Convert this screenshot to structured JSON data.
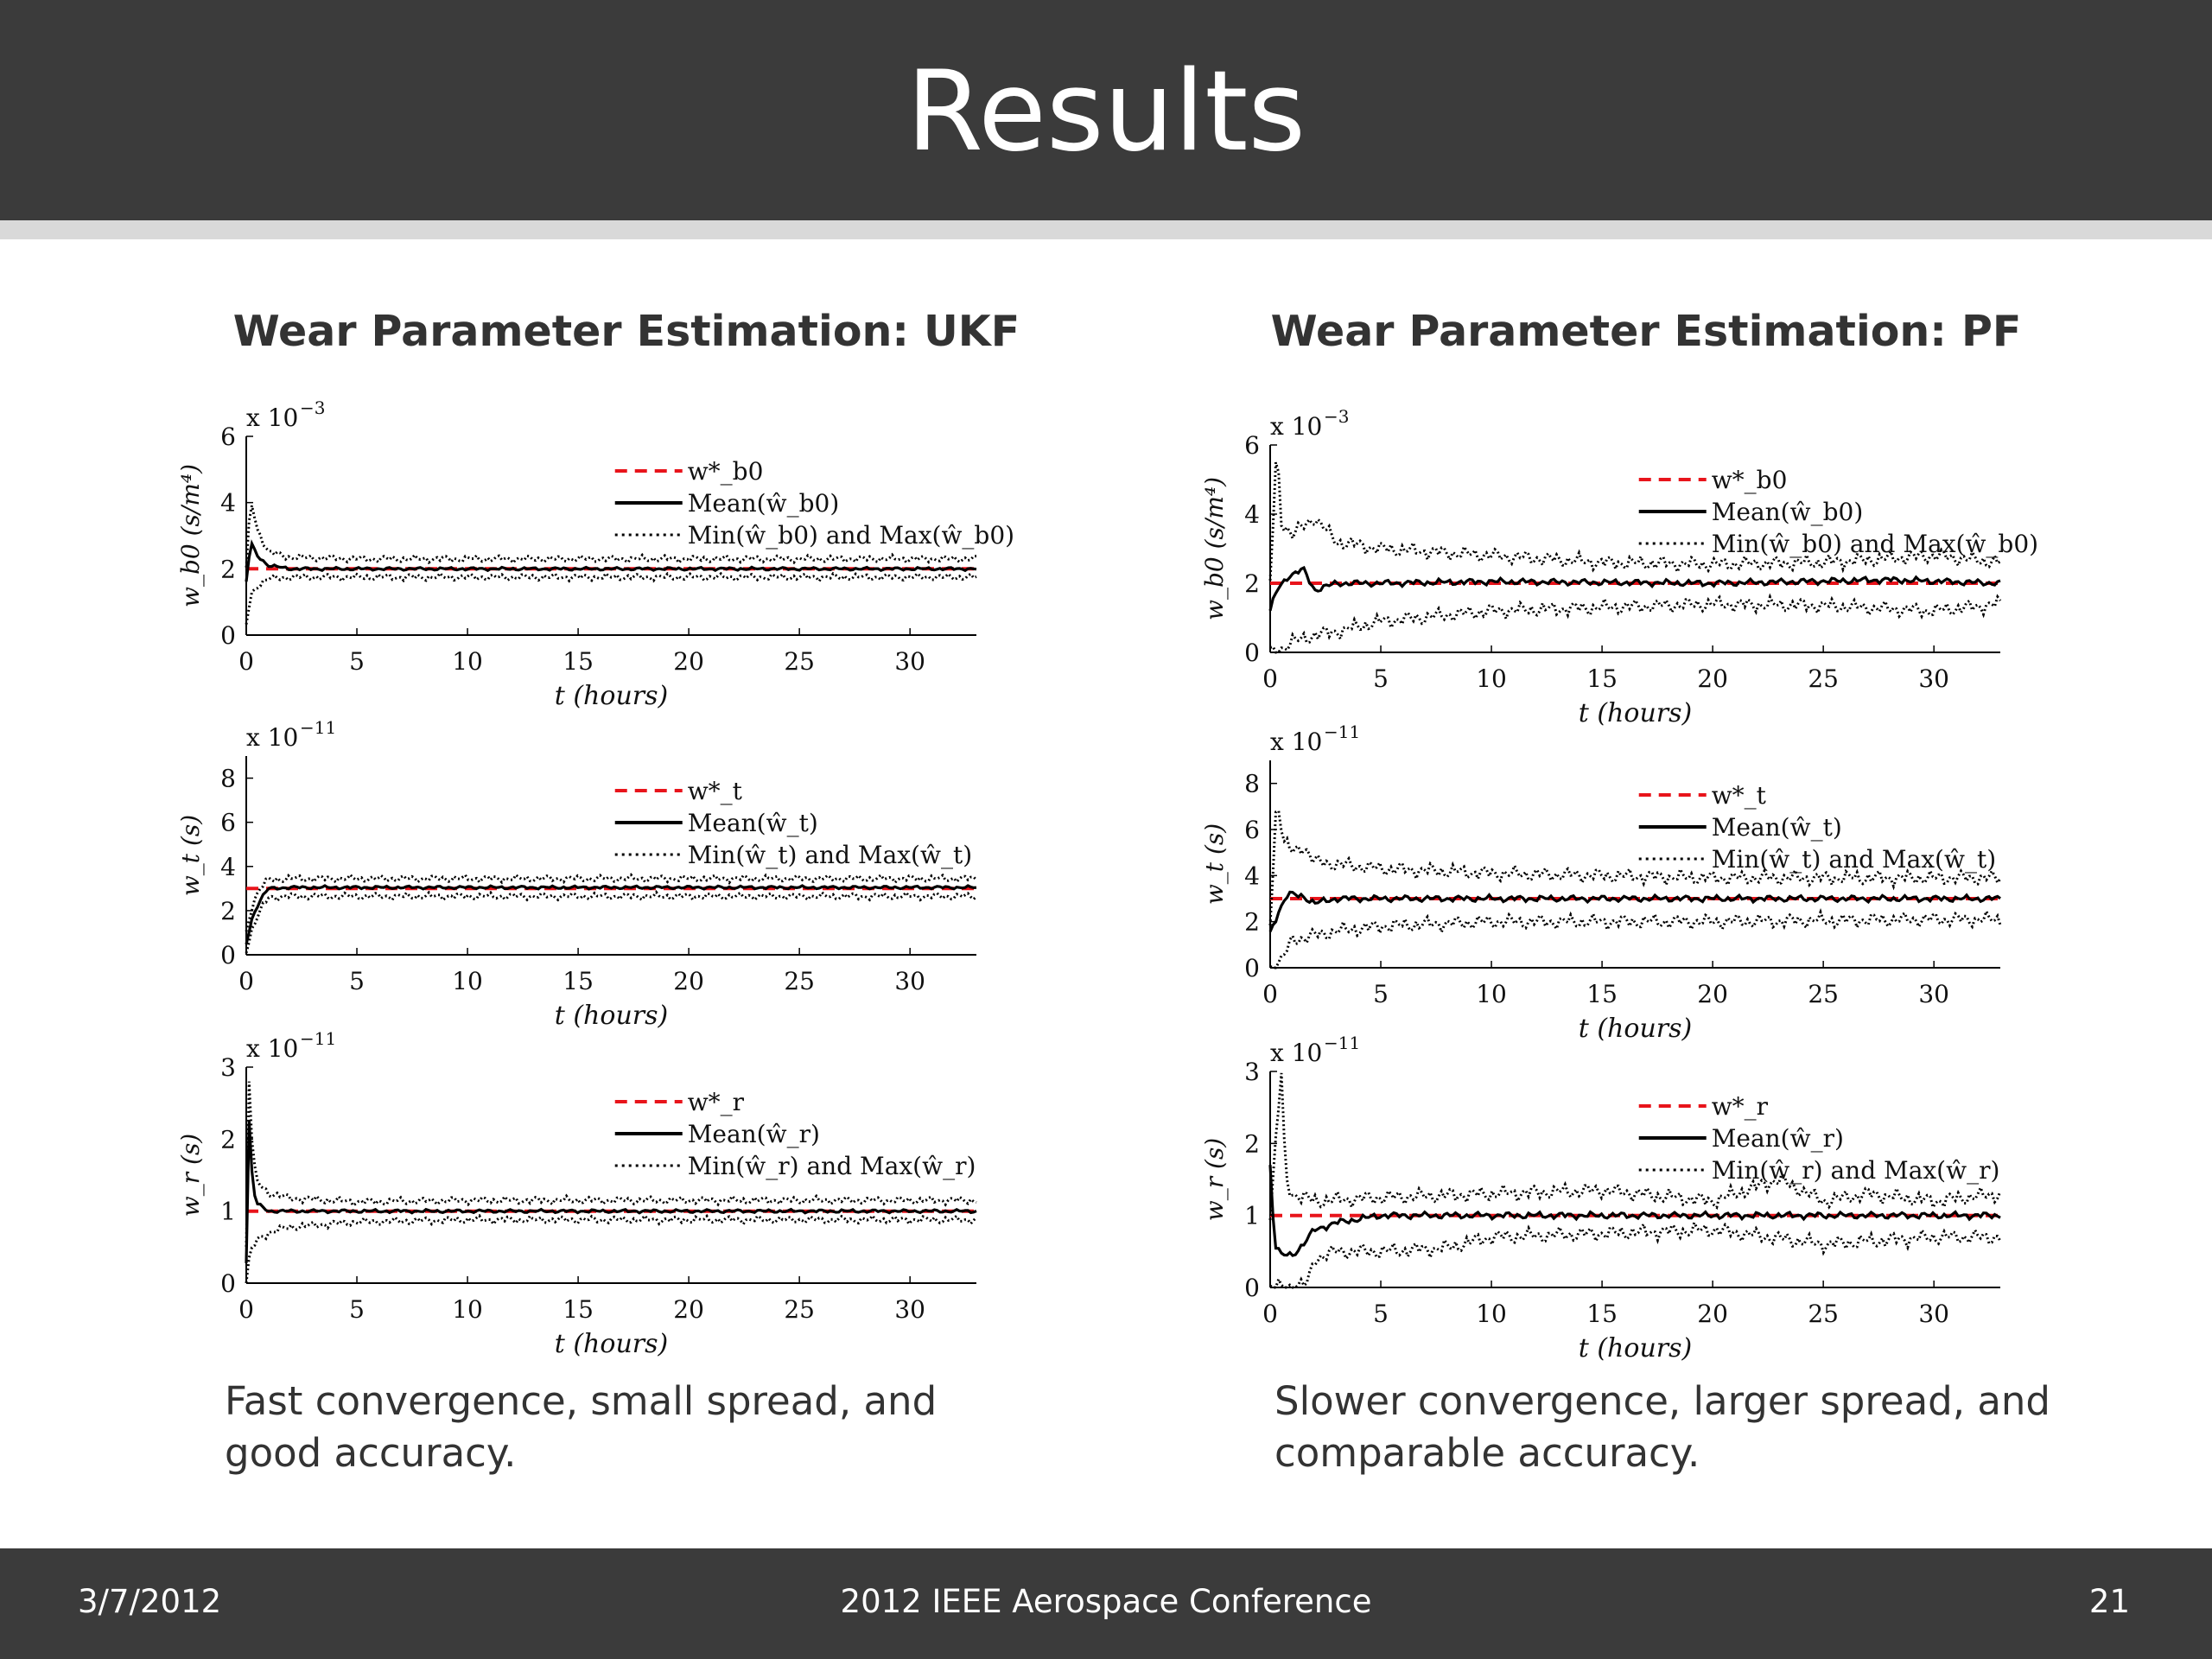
{
  "slide": {
    "title": "Results",
    "left": {
      "heading": "Wear Parameter Estimation: UKF",
      "caption": "Fast convergence, small spread, and good accuracy."
    },
    "right": {
      "heading": "Wear Parameter Estimation: PF",
      "caption": "Slower convergence, larger spread, and comparable accuracy."
    },
    "footer": {
      "date": "3/7/2012",
      "conference": "2012 IEEE Aerospace Conference",
      "page": "21"
    }
  },
  "chart_data": [
    {
      "id": "ukf-wb0",
      "type": "line",
      "method": "UKF",
      "multiplier": "x 10",
      "exponent": "−3",
      "ylabel": "w_b0 (s/m⁴)",
      "xlabel": "t (hours)",
      "xlim": [
        0,
        33
      ],
      "ylim": [
        0,
        6
      ],
      "xticks": [
        0,
        5,
        10,
        15,
        20,
        25,
        30
      ],
      "yticks": [
        0,
        2,
        4,
        6
      ],
      "legend": [
        "w*_b0",
        "Mean(ŵ_b0)",
        "Min(ŵ_b0) and Max(ŵ_b0)"
      ],
      "series": [
        {
          "name": "w*_b0",
          "style": "red-dashed",
          "x": [
            0,
            33
          ],
          "values": [
            2,
            2
          ]
        },
        {
          "name": "Mean(ŵ_b0)",
          "style": "solid",
          "x": [
            0,
            0.2,
            0.5,
            1,
            2,
            5,
            10,
            20,
            33
          ],
          "values": [
            1.6,
            2.8,
            2.4,
            2.1,
            2.0,
            2.0,
            2.0,
            2.0,
            2.0
          ]
        },
        {
          "name": "Max(ŵ_b0)",
          "style": "dotted",
          "x": [
            0,
            0.2,
            0.5,
            1,
            2,
            5,
            10,
            20,
            33
          ],
          "values": [
            2.0,
            4.1,
            3.2,
            2.5,
            2.35,
            2.3,
            2.3,
            2.3,
            2.3
          ]
        },
        {
          "name": "Min(ŵ_b0)",
          "style": "dotted",
          "x": [
            0,
            0.2,
            0.5,
            1,
            2,
            5,
            10,
            20,
            33
          ],
          "values": [
            0.3,
            1.2,
            1.5,
            1.7,
            1.75,
            1.75,
            1.75,
            1.75,
            1.75
          ]
        }
      ]
    },
    {
      "id": "ukf-wt",
      "type": "line",
      "method": "UKF",
      "multiplier": "x 10",
      "exponent": "−11",
      "ylabel": "w_t (s)",
      "xlabel": "t (hours)",
      "xlim": [
        0,
        33
      ],
      "ylim": [
        0,
        9
      ],
      "xticks": [
        0,
        5,
        10,
        15,
        20,
        25,
        30
      ],
      "yticks": [
        0,
        2,
        4,
        6,
        8
      ],
      "legend": [
        "w*_t",
        "Mean(ŵ_t)",
        "Min(ŵ_t) and Max(ŵ_t)"
      ],
      "series": [
        {
          "name": "w*_t",
          "style": "red-dashed",
          "x": [
            0,
            33
          ],
          "values": [
            3,
            3
          ]
        },
        {
          "name": "Mean(ŵ_t)",
          "style": "solid",
          "x": [
            0,
            0.3,
            0.7,
            1,
            2,
            5,
            10,
            20,
            33
          ],
          "values": [
            0.5,
            1.8,
            2.6,
            3.0,
            3.05,
            3.05,
            3.05,
            3.05,
            3.05
          ]
        },
        {
          "name": "Max(ŵ_t)",
          "style": "dotted",
          "x": [
            0,
            0.3,
            0.7,
            1,
            2,
            5,
            10,
            20,
            33
          ],
          "values": [
            1.0,
            2.4,
            3.1,
            3.4,
            3.45,
            3.45,
            3.45,
            3.45,
            3.45
          ]
        },
        {
          "name": "Min(ŵ_t)",
          "style": "dotted",
          "x": [
            0,
            0.3,
            0.7,
            1,
            2,
            5,
            10,
            20,
            33
          ],
          "values": [
            0.2,
            1.3,
            2.1,
            2.6,
            2.65,
            2.65,
            2.65,
            2.65,
            2.65
          ]
        }
      ]
    },
    {
      "id": "ukf-wr",
      "type": "line",
      "method": "UKF",
      "multiplier": "x 10",
      "exponent": "−11",
      "ylabel": "w_r (s)",
      "xlabel": "t (hours)",
      "xlim": [
        0,
        33
      ],
      "ylim": [
        0,
        3
      ],
      "xticks": [
        0,
        5,
        10,
        15,
        20,
        25,
        30
      ],
      "yticks": [
        0,
        1,
        2,
        3
      ],
      "legend": [
        "w*_r",
        "Mean(ŵ_r)",
        "Min(ŵ_r) and Max(ŵ_r)"
      ],
      "series": [
        {
          "name": "w*_r",
          "style": "red-dashed",
          "x": [
            0,
            33
          ],
          "values": [
            1,
            1
          ]
        },
        {
          "name": "Mean(ŵ_r)",
          "style": "solid",
          "x": [
            0,
            0.1,
            0.3,
            0.5,
            1,
            2,
            5,
            10,
            20,
            33
          ],
          "values": [
            0.3,
            2.4,
            1.3,
            1.1,
            1.0,
            1.0,
            1.0,
            1.0,
            1.0,
            1.0
          ]
        },
        {
          "name": "Max(ŵ_r)",
          "style": "dotted",
          "x": [
            0,
            0.1,
            0.3,
            0.5,
            1,
            2,
            5,
            10,
            20,
            33
          ],
          "values": [
            0.5,
            3.0,
            1.7,
            1.4,
            1.25,
            1.18,
            1.13,
            1.15,
            1.15,
            1.15
          ]
        },
        {
          "name": "Min(ŵ_r)",
          "style": "dotted",
          "x": [
            0,
            0.1,
            0.3,
            0.5,
            1,
            2,
            5,
            10,
            20,
            33
          ],
          "values": [
            0.0,
            0.3,
            0.5,
            0.6,
            0.7,
            0.78,
            0.85,
            0.88,
            0.88,
            0.88
          ]
        }
      ]
    },
    {
      "id": "pf-wb0",
      "type": "line",
      "method": "PF",
      "multiplier": "x 10",
      "exponent": "−3",
      "ylabel": "w_b0 (s/m⁴)",
      "xlabel": "t (hours)",
      "xlim": [
        0,
        33
      ],
      "ylim": [
        0,
        6
      ],
      "xticks": [
        0,
        5,
        10,
        15,
        20,
        25,
        30
      ],
      "yticks": [
        0,
        2,
        4,
        6
      ],
      "legend": [
        "w*_b0",
        "Mean(ŵ_b0)",
        "Min(ŵ_b0) and Max(ŵ_b0)"
      ],
      "series": [
        {
          "name": "w*_b0",
          "style": "red-dashed",
          "x": [
            0,
            33
          ],
          "values": [
            2,
            2
          ]
        },
        {
          "name": "Mean(ŵ_b0)",
          "style": "solid",
          "x": [
            0,
            0.3,
            0.8,
            1.5,
            2,
            3,
            5,
            10,
            20,
            28,
            33
          ],
          "values": [
            1.2,
            1.8,
            2.2,
            2.4,
            1.8,
            2.0,
            2.0,
            2.05,
            2.0,
            2.1,
            2.0
          ]
        },
        {
          "name": "Max(ŵ_b0)",
          "style": "dotted",
          "x": [
            0,
            0.3,
            0.5,
            1,
            2,
            3,
            5,
            10,
            15,
            20,
            25,
            30,
            33
          ],
          "values": [
            2.0,
            6.0,
            3.8,
            3.4,
            3.9,
            3.2,
            3.0,
            2.8,
            2.6,
            2.55,
            2.6,
            2.8,
            2.6
          ]
        },
        {
          "name": "Min(ŵ_b0)",
          "style": "dotted",
          "x": [
            0,
            0.5,
            1,
            2,
            3,
            5,
            10,
            15,
            20,
            25,
            30,
            33
          ],
          "values": [
            0.0,
            0.1,
            0.3,
            0.5,
            0.6,
            0.9,
            1.2,
            1.3,
            1.4,
            1.35,
            1.2,
            1.4
          ]
        }
      ]
    },
    {
      "id": "pf-wt",
      "type": "line",
      "method": "PF",
      "multiplier": "x 10",
      "exponent": "−11",
      "ylabel": "w_t (s)",
      "xlabel": "t (hours)",
      "xlim": [
        0,
        33
      ],
      "ylim": [
        0,
        9
      ],
      "xticks": [
        0,
        5,
        10,
        15,
        20,
        25,
        30
      ],
      "yticks": [
        0,
        2,
        4,
        6,
        8
      ],
      "legend": [
        "w*_t",
        "Mean(ŵ_t)",
        "Min(ŵ_t) and Max(ŵ_t)"
      ],
      "series": [
        {
          "name": "w*_t",
          "style": "red-dashed",
          "x": [
            0,
            33
          ],
          "values": [
            3,
            3
          ]
        },
        {
          "name": "Mean(ŵ_t)",
          "style": "solid",
          "x": [
            0,
            0.4,
            0.8,
            1.5,
            2,
            3,
            5,
            10,
            20,
            33
          ],
          "values": [
            1.5,
            2.5,
            3.2,
            3.1,
            2.8,
            3.0,
            3.0,
            3.0,
            3.0,
            3.0
          ]
        },
        {
          "name": "Max(ŵ_t)",
          "style": "dotted",
          "x": [
            0,
            0.3,
            0.6,
            1,
            1.5,
            2,
            3,
            5,
            10,
            20,
            30,
            33
          ],
          "values": [
            2.0,
            7.5,
            5.5,
            5.0,
            5.3,
            4.6,
            4.5,
            4.3,
            4.1,
            3.9,
            3.9,
            3.9
          ]
        },
        {
          "name": "Min(ŵ_t)",
          "style": "dotted",
          "x": [
            0,
            0.5,
            1,
            2,
            3,
            5,
            10,
            20,
            30,
            33
          ],
          "values": [
            0.0,
            0.3,
            1.2,
            1.4,
            1.6,
            1.8,
            2.0,
            2.0,
            2.1,
            2.1
          ]
        }
      ]
    },
    {
      "id": "pf-wr",
      "type": "line",
      "method": "PF",
      "multiplier": "x 10",
      "exponent": "−11",
      "ylabel": "w_r (s)",
      "xlabel": "t (hours)",
      "xlim": [
        0,
        33
      ],
      "ylim": [
        0,
        3
      ],
      "xticks": [
        0,
        5,
        10,
        15,
        20,
        25,
        30
      ],
      "yticks": [
        0,
        1,
        2,
        3
      ],
      "legend": [
        "w*_r",
        "Mean(ŵ_r)",
        "Min(ŵ_r) and Max(ŵ_r)"
      ],
      "series": [
        {
          "name": "w*_r",
          "style": "red-dashed",
          "x": [
            0,
            33
          ],
          "values": [
            1,
            1
          ]
        },
        {
          "name": "Mean(ŵ_r)",
          "style": "solid",
          "x": [
            0,
            0.2,
            0.5,
            1,
            1.5,
            2,
            3,
            5,
            10,
            20,
            33
          ],
          "values": [
            1.7,
            0.6,
            0.45,
            0.45,
            0.6,
            0.8,
            0.9,
            1.0,
            1.0,
            1.0,
            1.0
          ]
        },
        {
          "name": "Max(ŵ_r)",
          "style": "dotted",
          "x": [
            0,
            0.5,
            0.7,
            1,
            2,
            5,
            10,
            15,
            20,
            23,
            25,
            27,
            30,
            33
          ],
          "values": [
            1.0,
            3.0,
            1.5,
            1.3,
            1.2,
            1.25,
            1.3,
            1.35,
            1.2,
            1.5,
            1.2,
            1.3,
            1.2,
            1.3
          ]
        },
        {
          "name": "Min(ŵ_r)",
          "style": "dotted",
          "x": [
            0,
            1,
            1.7,
            2,
            3,
            5,
            8,
            10,
            15,
            20,
            25,
            30,
            33
          ],
          "values": [
            0.0,
            0.0,
            0.05,
            0.4,
            0.5,
            0.5,
            0.55,
            0.7,
            0.75,
            0.8,
            0.6,
            0.7,
            0.7
          ]
        }
      ]
    }
  ]
}
